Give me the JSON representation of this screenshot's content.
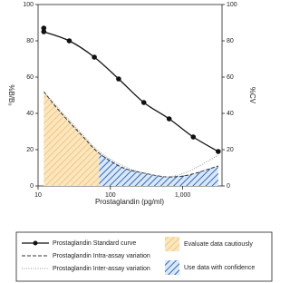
{
  "chart_data": {
    "type": "line",
    "x_label": "Prostaglandin (pg/ml)",
    "y_label": "%B/B₀",
    "y2_label": "%CV",
    "xscale": "log",
    "xlim": [
      10,
      3500
    ],
    "xticks": [
      10,
      100,
      {
        "value": 1000,
        "label": "1,000"
      }
    ],
    "ylim": [
      0,
      100
    ],
    "yticks": [
      0,
      20,
      40,
      60,
      80,
      100
    ],
    "y2lim": [
      0,
      100
    ],
    "y2ticks": [
      0,
      20,
      40,
      60,
      80,
      100
    ],
    "series": [
      {
        "name": "Prostaglandin Standard curve",
        "color": "#111111",
        "style": "solid",
        "markers": true,
        "x": [
          12,
          12,
          27,
          60,
          130,
          290,
          650,
          1400,
          3100
        ],
        "values": [
          85,
          87,
          80,
          71,
          59,
          46,
          37,
          27,
          19
        ]
      },
      {
        "name": "Prostaglandin Intra-assay variation",
        "color": "#333333",
        "style": "dashed",
        "axis": "y2",
        "x": [
          12,
          20,
          40,
          70,
          150,
          300,
          600,
          1200,
          3100
        ],
        "values": [
          52,
          41,
          28,
          18,
          10,
          7,
          5,
          6,
          11
        ]
      },
      {
        "name": "Prostaglandin Inter-assay variation",
        "color": "#999999",
        "style": "dotted",
        "axis": "y2",
        "x": [
          12,
          20,
          40,
          70,
          150,
          300,
          600,
          1200,
          3100
        ],
        "values": [
          52,
          42,
          29,
          19,
          11,
          7,
          5,
          8,
          17
        ]
      }
    ],
    "regions": [
      {
        "name": "Evaluate data cautiously",
        "color": "#f3c77a",
        "x": [
          12,
          70
        ]
      },
      {
        "name": "Use data with confidence",
        "color": "#2b6cc4",
        "x": [
          70,
          3100
        ]
      }
    ]
  }
}
